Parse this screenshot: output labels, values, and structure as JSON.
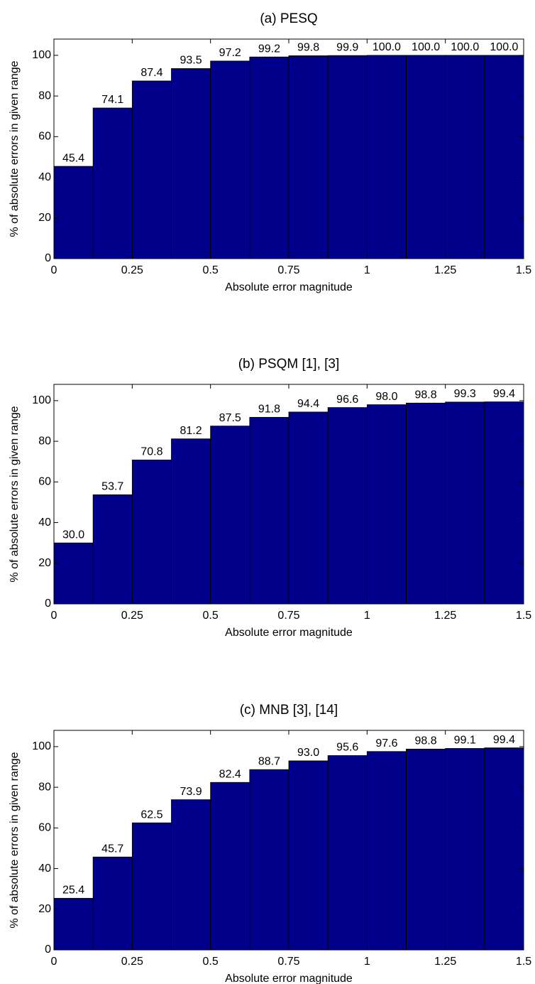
{
  "chart_data": [
    {
      "type": "histogram",
      "title": "(a) PESQ",
      "xlabel": "Absolute error magnitude",
      "ylabel": "% of absolute errors in given range",
      "bins": [
        0,
        0.125,
        0.25,
        0.375,
        0.5,
        0.625,
        0.75,
        0.875,
        1,
        1.125,
        1.25,
        1.375,
        1.5
      ],
      "values": [
        45.4,
        74.1,
        87.4,
        93.5,
        97.2,
        99.2,
        99.8,
        99.9,
        100,
        100,
        100,
        100
      ],
      "value_labels": [
        "45.4",
        "74.1",
        "87.4",
        "93.5",
        "97.2",
        "99.2",
        "99.8",
        "99.9",
        "100.0",
        "100.0",
        "100.0",
        "100.0"
      ],
      "color": "#00008b",
      "xlim": [
        0,
        1.5
      ],
      "xticks": [
        0,
        0.25,
        0.5,
        0.75,
        1,
        1.25,
        1.5
      ],
      "ylim": [
        0,
        108
      ],
      "yticks": [
        0,
        20,
        40,
        60,
        80,
        100
      ]
    },
    {
      "type": "histogram",
      "title": "(b) PSQM [1], [3]",
      "xlabel": "Absolute error magnitude",
      "ylabel": "% of absolute errors in given range",
      "bins": [
        0,
        0.125,
        0.25,
        0.375,
        0.5,
        0.625,
        0.75,
        0.875,
        1,
        1.125,
        1.25,
        1.375,
        1.5
      ],
      "values": [
        30,
        53.7,
        70.8,
        81.2,
        87.5,
        91.8,
        94.4,
        96.6,
        98,
        98.8,
        99.3,
        99.4
      ],
      "value_labels": [
        "30.0",
        "53.7",
        "70.8",
        "81.2",
        "87.5",
        "91.8",
        "94.4",
        "96.6",
        "98.0",
        "98.8",
        "99.3",
        "99.4"
      ],
      "color": "#00008b",
      "xlim": [
        0,
        1.5
      ],
      "xticks": [
        0,
        0.25,
        0.5,
        0.75,
        1,
        1.25,
        1.5
      ],
      "ylim": [
        0,
        108
      ],
      "yticks": [
        0,
        20,
        40,
        60,
        80,
        100
      ]
    },
    {
      "type": "histogram",
      "title": "(c) MNB [3], [14]",
      "xlabel": "Absolute error magnitude",
      "ylabel": "% of absolute errors in given range",
      "bins": [
        0,
        0.125,
        0.25,
        0.375,
        0.5,
        0.625,
        0.75,
        0.875,
        1,
        1.125,
        1.25,
        1.375,
        1.5
      ],
      "values": [
        25.4,
        45.7,
        62.5,
        73.9,
        82.4,
        88.7,
        93,
        95.6,
        97.6,
        98.8,
        99.1,
        99.4
      ],
      "value_labels": [
        "25.4",
        "45.7",
        "62.5",
        "73.9",
        "82.4",
        "88.7",
        "93.0",
        "95.6",
        "97.6",
        "98.8",
        "99.1",
        "99.4"
      ],
      "color": "#00008b",
      "xlim": [
        0,
        1.5
      ],
      "xticks": [
        0,
        0.25,
        0.5,
        0.75,
        1,
        1.25,
        1.5
      ],
      "ylim": [
        0,
        108
      ],
      "yticks": [
        0,
        20,
        40,
        60,
        80,
        100
      ]
    }
  ]
}
